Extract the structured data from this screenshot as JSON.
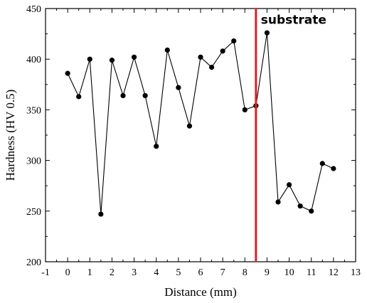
{
  "chart_data": {
    "type": "line",
    "title": "",
    "xlabel": "Distance (mm)",
    "ylabel": "Hardness (HV 0.5)",
    "xlim": [
      -1,
      13
    ],
    "ylim": [
      200,
      450
    ],
    "xticks": [
      -1,
      0,
      1,
      2,
      3,
      4,
      5,
      6,
      7,
      8,
      9,
      10,
      11,
      12,
      13
    ],
    "yticks": [
      200,
      250,
      300,
      350,
      400,
      450
    ],
    "grid": false,
    "series": [
      {
        "x": [
          0,
          0.5,
          1,
          1.5,
          2,
          2.5,
          3,
          3.5,
          4,
          4.5,
          5,
          5.5,
          6,
          6.5,
          7,
          7.5,
          8,
          8.5,
          9,
          9.5,
          10,
          10.5,
          11,
          11.5,
          12
        ],
        "y": [
          386,
          363,
          400,
          247,
          399,
          364,
          402,
          364,
          314,
          409,
          372,
          334,
          402,
          392,
          408,
          418,
          350,
          354,
          426,
          259,
          276,
          255,
          250,
          297,
          292
        ],
        "color": "#000000",
        "marker": "circle"
      }
    ],
    "vertical_line": {
      "x": 8.5,
      "color": "#e02020"
    },
    "annotation": {
      "text": "substrate",
      "x": 10.2,
      "y": 435
    }
  }
}
